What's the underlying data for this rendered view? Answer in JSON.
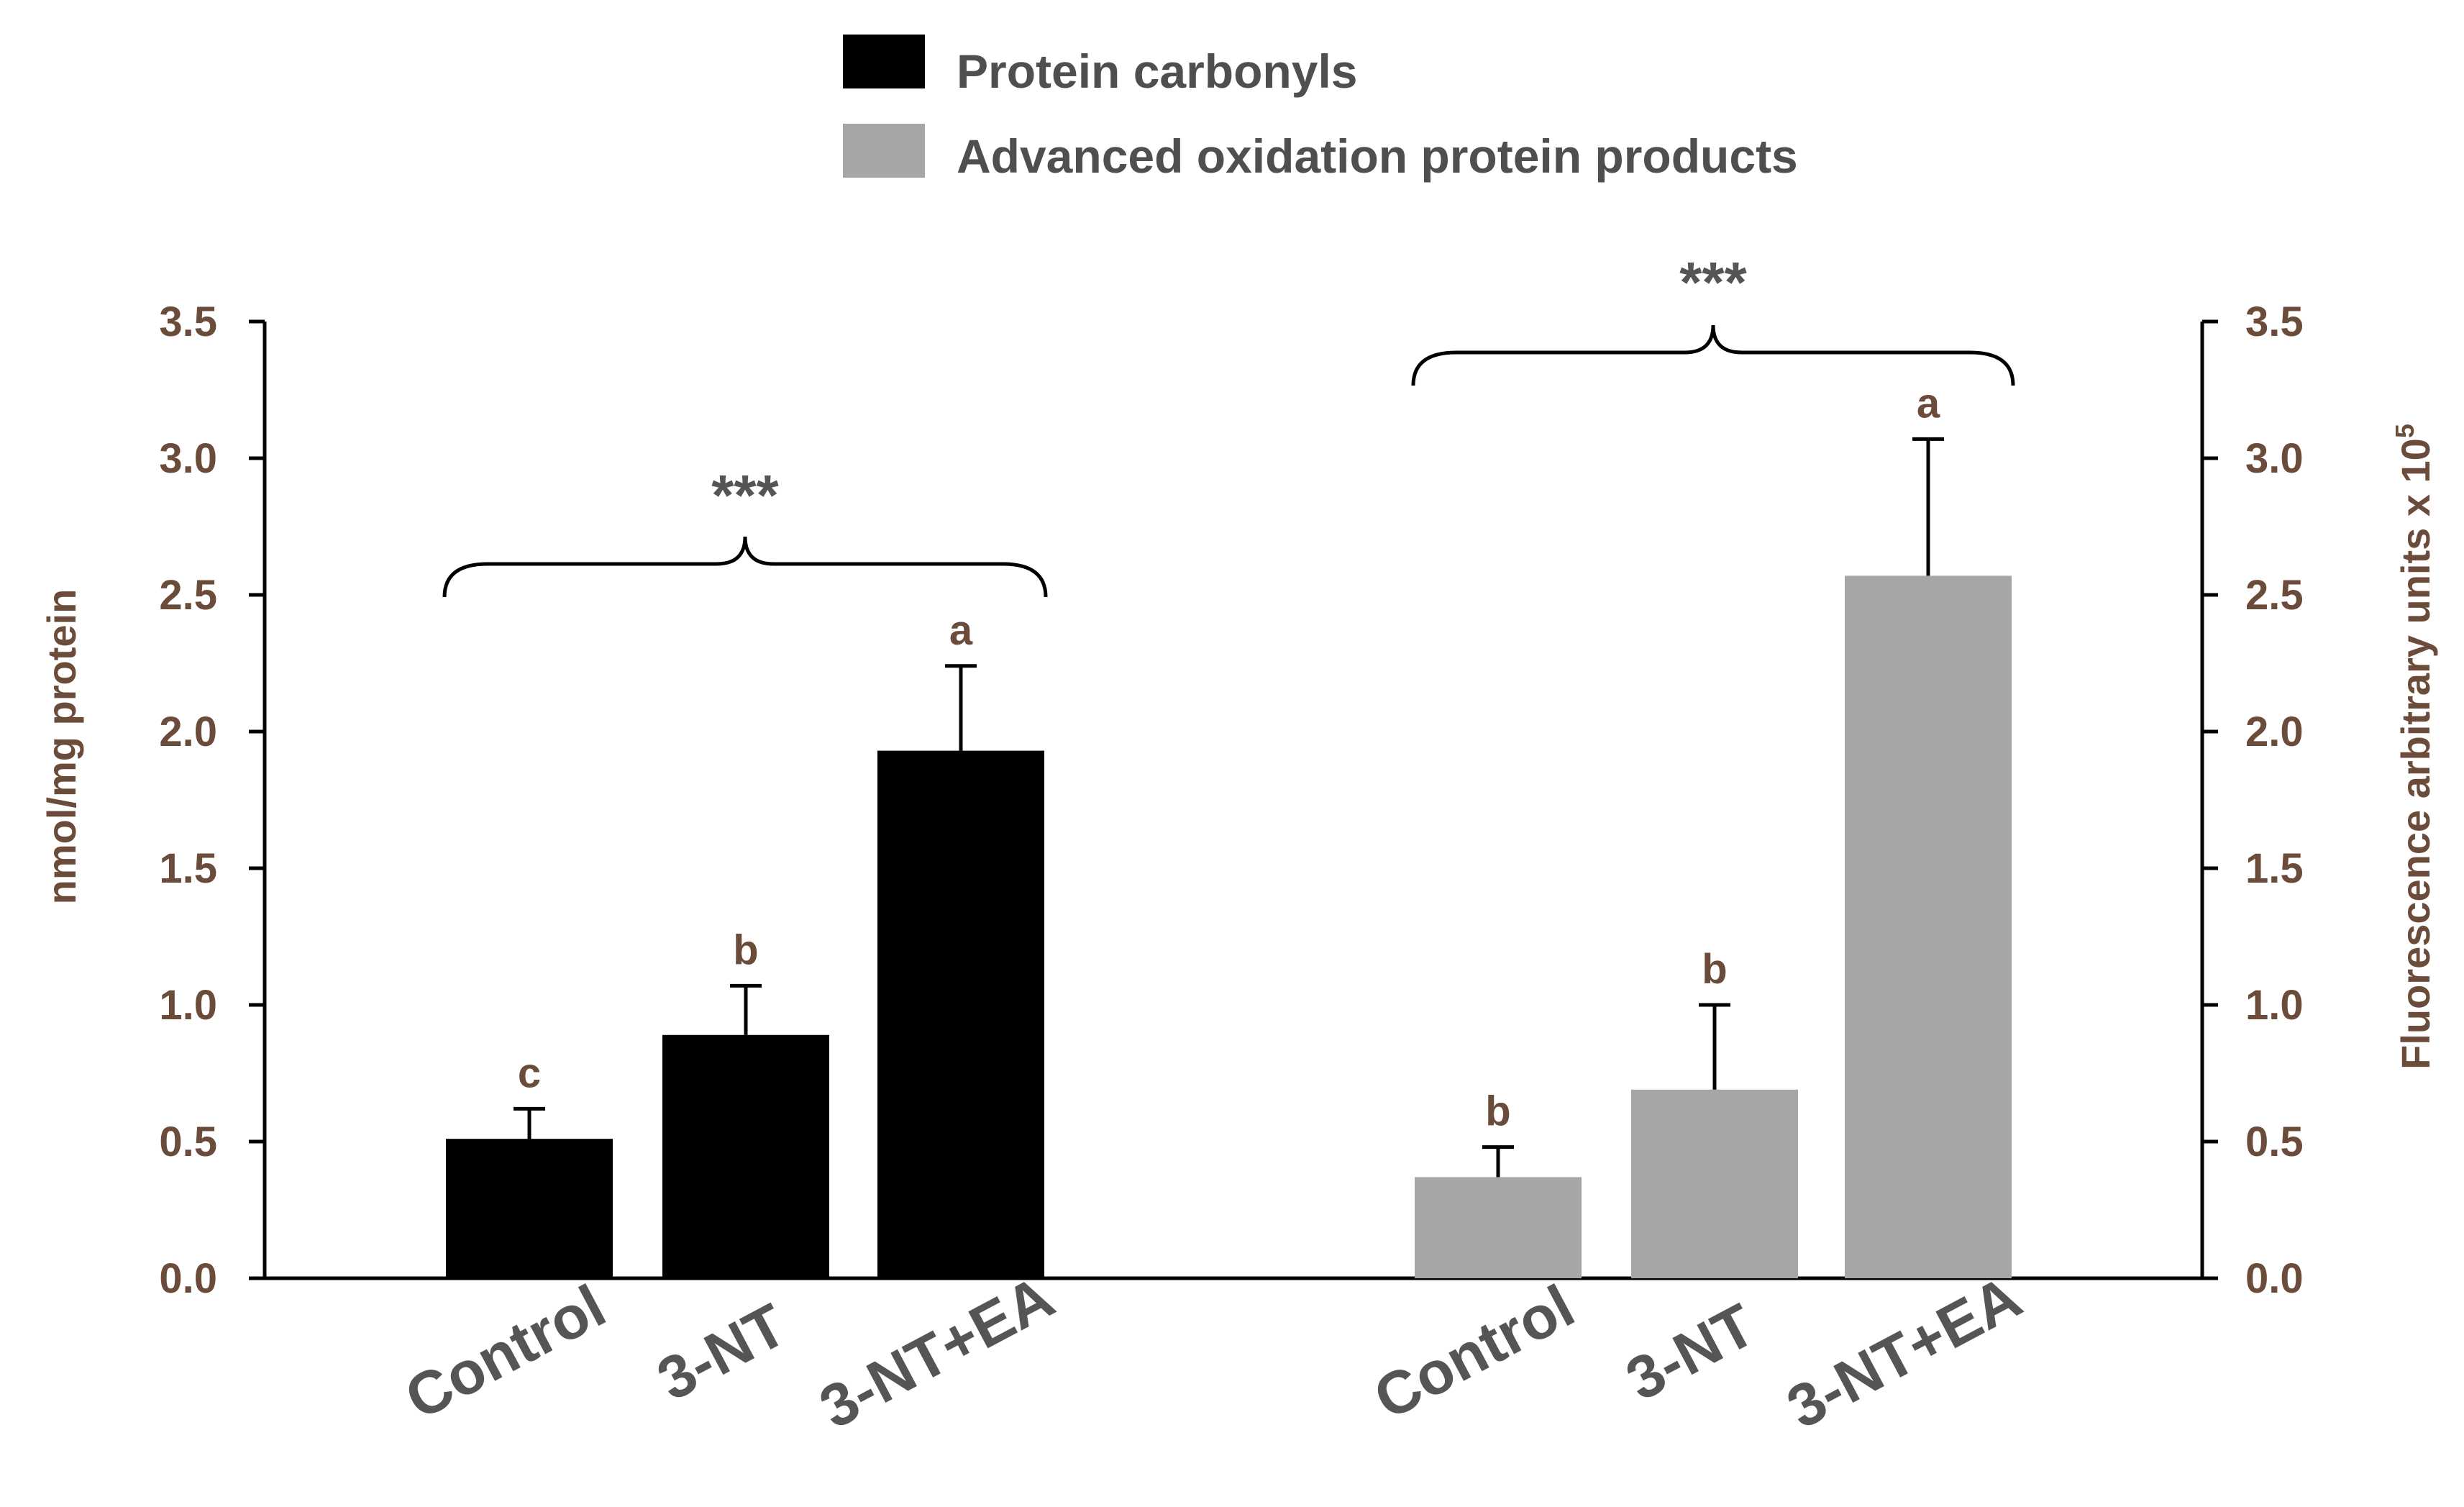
{
  "chart_data": {
    "type": "bar",
    "legend": {
      "position": "top-center",
      "entries": [
        {
          "name": "Protein carbonyls",
          "color": "#000000"
        },
        {
          "name": "Advanced oxidation protein products",
          "color": "#a6a6a6"
        }
      ]
    },
    "left_axis": {
      "label": "nmol/mg protein",
      "range": [
        0,
        3.5
      ],
      "ticks": [
        "0.0",
        "0.5",
        "1.0",
        "1.5",
        "2.0",
        "2.5",
        "3.0",
        "3.5"
      ]
    },
    "right_axis": {
      "label": "Fluorescence arbitrary units x 10",
      "label_superscript": "5",
      "range": [
        0,
        3.5
      ],
      "ticks": [
        "0.0",
        "0.5",
        "1.0",
        "1.5",
        "2.0",
        "2.5",
        "3.0",
        "3.5"
      ]
    },
    "series": [
      {
        "name": "Protein carbonyls",
        "axis": "left",
        "color": "#000000",
        "categories": [
          "Control",
          "3-NT",
          "3-NT+EA"
        ],
        "values": [
          0.51,
          0.89,
          1.93
        ],
        "errors": [
          0.11,
          0.18,
          0.31
        ],
        "letters": [
          "c",
          "b",
          "a"
        ],
        "significance": "***"
      },
      {
        "name": "Advanced oxidation protein products",
        "axis": "right",
        "color": "#a6a6a6",
        "categories": [
          "Control",
          "3-NT",
          "3-NT+EA"
        ],
        "values": [
          0.37,
          0.69,
          2.57
        ],
        "errors": [
          0.11,
          0.31,
          0.5
        ],
        "letters": [
          "b",
          "b",
          "a"
        ],
        "significance": "***"
      }
    ]
  }
}
